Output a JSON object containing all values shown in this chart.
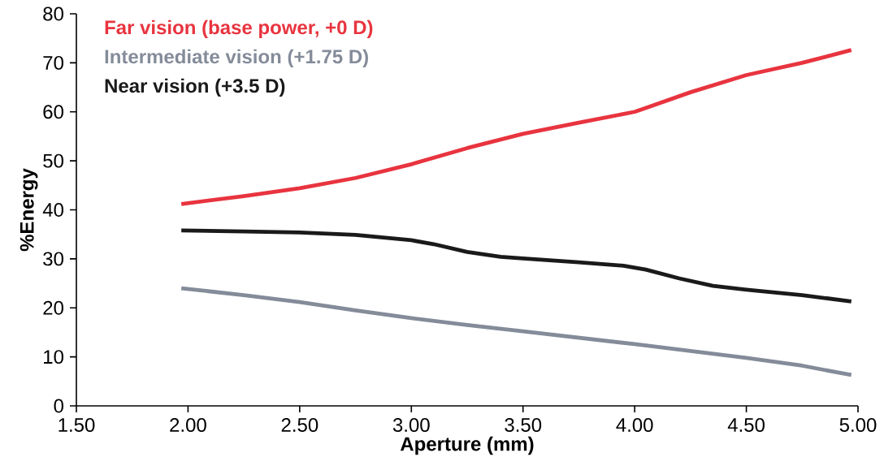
{
  "chart_data": {
    "type": "line",
    "xlabel": "Aperture (mm)",
    "ylabel": "%Energy",
    "xlim": [
      1.5,
      5.0
    ],
    "ylim": [
      0,
      80
    ],
    "xticks": [
      {
        "value": 1.5,
        "label": "1.50"
      },
      {
        "value": 2.0,
        "label": "2.00"
      },
      {
        "value": 2.5,
        "label": "2.50"
      },
      {
        "value": 3.0,
        "label": "3.00"
      },
      {
        "value": 3.5,
        "label": "3.50"
      },
      {
        "value": 4.0,
        "label": "4.00"
      },
      {
        "value": 4.5,
        "label": "4.50"
      },
      {
        "value": 5.0,
        "label": "5.00"
      }
    ],
    "yticks": [
      0,
      10,
      20,
      30,
      40,
      50,
      60,
      70,
      80
    ],
    "legend": "top left",
    "grid": false,
    "marker": "none",
    "line_style": "solid",
    "series": [
      {
        "name": "Far vision (base power, +0 D)",
        "color": "#e8343f",
        "x": [
          1.97,
          2.25,
          2.5,
          2.75,
          3.0,
          3.25,
          3.5,
          3.75,
          4.0,
          4.05,
          4.25,
          4.5,
          4.75,
          4.97
        ],
        "values": [
          41.2,
          42.8,
          44.4,
          46.5,
          49.3,
          52.6,
          55.5,
          57.8,
          60.0,
          60.8,
          64.0,
          67.5,
          70.0,
          72.6
        ]
      },
      {
        "name": "Intermediate vision (+1.75 D)",
        "color": "#848b99",
        "x": [
          1.97,
          2.25,
          2.5,
          2.75,
          3.0,
          3.25,
          3.5,
          3.75,
          4.0,
          4.25,
          4.5,
          4.75,
          4.97
        ],
        "values": [
          24.0,
          22.6,
          21.2,
          19.5,
          17.9,
          16.5,
          15.2,
          13.9,
          12.6,
          11.2,
          9.8,
          8.2,
          6.3
        ]
      },
      {
        "name": "Near vision (+3.5 D)",
        "color": "#1a1a1a",
        "x": [
          1.97,
          2.25,
          2.5,
          2.75,
          3.0,
          3.1,
          3.25,
          3.4,
          3.5,
          3.75,
          3.95,
          4.05,
          4.2,
          4.35,
          4.5,
          4.75,
          4.97
        ],
        "values": [
          35.8,
          35.6,
          35.4,
          34.9,
          33.8,
          33.0,
          31.4,
          30.4,
          30.1,
          29.3,
          28.6,
          27.8,
          26.0,
          24.5,
          23.7,
          22.6,
          21.3
        ]
      }
    ]
  }
}
